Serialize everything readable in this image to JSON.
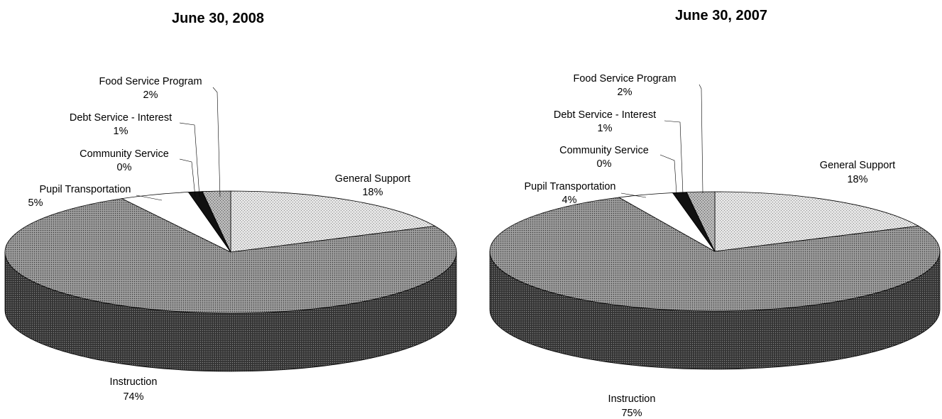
{
  "chart_data": [
    {
      "type": "pie",
      "title": "June 30, 2008",
      "slices": [
        {
          "label": "General Support",
          "pct_label": "18%",
          "value": 18
        },
        {
          "label": "Instruction",
          "pct_label": "74%",
          "value": 74
        },
        {
          "label": "Pupil Transportation",
          "pct_label": "5%",
          "value": 5
        },
        {
          "label": "Community Service",
          "pct_label": "0%",
          "value": 0
        },
        {
          "label": "Debt Service - Interest",
          "pct_label": "1%",
          "value": 1
        },
        {
          "label": "Food Service Program",
          "pct_label": "2%",
          "value": 2
        }
      ]
    },
    {
      "type": "pie",
      "title": "June 30, 2007",
      "slices": [
        {
          "label": "General Support",
          "pct_label": "18%",
          "value": 18
        },
        {
          "label": "Instruction",
          "pct_label": "75%",
          "value": 75
        },
        {
          "label": "Pupil Transportation",
          "pct_label": "4%",
          "value": 4
        },
        {
          "label": "Community Service",
          "pct_label": "0%",
          "value": 0
        },
        {
          "label": "Debt Service - Interest",
          "pct_label": "1%",
          "value": 1
        },
        {
          "label": "Food Service Program",
          "pct_label": "2%",
          "value": 2
        }
      ]
    }
  ]
}
